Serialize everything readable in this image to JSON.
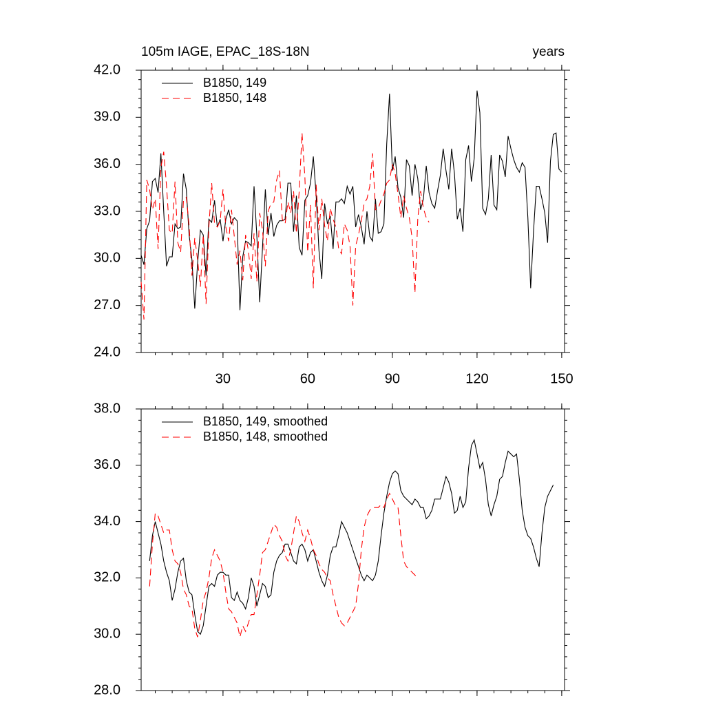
{
  "chart_data": [
    {
      "type": "line",
      "title": "105m IAGE, EPAC_18S-18N",
      "subtitle": "years",
      "xlim": [
        1,
        151
      ],
      "xticks": [
        30,
        60,
        90,
        120,
        150
      ],
      "ylim": [
        24,
        42
      ],
      "yticks": [
        {
          "value": 24,
          "label": "24.0"
        },
        {
          "value": 27,
          "label": "27.0"
        },
        {
          "value": 30,
          "label": "30.0"
        },
        {
          "value": 33,
          "label": "33.0"
        },
        {
          "value": 36,
          "label": "36.0"
        },
        {
          "value": 39,
          "label": "39.0"
        },
        {
          "value": 42,
          "label": "42.0"
        }
      ],
      "legend": "upper left",
      "x": [
        1,
        2,
        3,
        4,
        5,
        6,
        7,
        8,
        9,
        10,
        11,
        12,
        13,
        14,
        15,
        16,
        17,
        18,
        19,
        20,
        21,
        22,
        23,
        24,
        25,
        26,
        27,
        28,
        29,
        30,
        31,
        32,
        33,
        34,
        35,
        36,
        37,
        38,
        39,
        40,
        41,
        42,
        43,
        44,
        45,
        46,
        47,
        48,
        49,
        50,
        51,
        52,
        53,
        54,
        55,
        56,
        57,
        58,
        59,
        60,
        61,
        62,
        63,
        64,
        65,
        66,
        67,
        68,
        69,
        70,
        71,
        72,
        73,
        74,
        75,
        76,
        77,
        78,
        79,
        80,
        81,
        82,
        83,
        84,
        85,
        86,
        87,
        88,
        89,
        90,
        91,
        92,
        93,
        94,
        95,
        96,
        97,
        98,
        99,
        100,
        101,
        102,
        103,
        104,
        105,
        106,
        107,
        108,
        109,
        110,
        111,
        112,
        113,
        114,
        115,
        116,
        117,
        118,
        119,
        120,
        121,
        122,
        123,
        124,
        125,
        126,
        127,
        128,
        129,
        130,
        131,
        132,
        133,
        134,
        135,
        136,
        137,
        138,
        139,
        140,
        141,
        142,
        143,
        144,
        145,
        146,
        147,
        148,
        149,
        150
      ],
      "series": [
        {
          "name": "B1850, 149",
          "color": "#000000",
          "dashed": false,
          "values": [
            30.2,
            29.6,
            31.9,
            32.4,
            34.9,
            35.1,
            34.2,
            36.7,
            33.0,
            29.5,
            30.1,
            30.1,
            32.2,
            31.9,
            32.0,
            35.4,
            34.4,
            31.5,
            29.9,
            26.8,
            29.7,
            31.8,
            31.5,
            28.9,
            32.5,
            32.3,
            33.7,
            32.0,
            32.5,
            31.1,
            32.5,
            33.1,
            32.2,
            32.6,
            32.4,
            26.7,
            30.1,
            31.1,
            31.0,
            30.8,
            34.6,
            31.4,
            27.2,
            30.7,
            34.4,
            31.5,
            32.9,
            31.4,
            32.1,
            32.4,
            32.4,
            32.5,
            34.8,
            34.8,
            31.7,
            34.0,
            30.7,
            30.2,
            33.7,
            34.0,
            34.8,
            36.5,
            34.0,
            30.5,
            28.7,
            33.5,
            32.2,
            32.7,
            30.6,
            33.6,
            33.6,
            33.8,
            33.5,
            34.6,
            34.1,
            34.6,
            32.0,
            32.8,
            32.0,
            30.9,
            33.0,
            31.4,
            31.1,
            33.8,
            31.6,
            31.7,
            32.2,
            37.3,
            40.5,
            35.6,
            36.5,
            34.5,
            33.9,
            32.6,
            36.3,
            35.9,
            34.0,
            36.0,
            35.1,
            33.1,
            33.8,
            35.9,
            34.2,
            33.5,
            33.2,
            34.3,
            35.3,
            37.0,
            35.6,
            34.4,
            37.0,
            35.4,
            32.5,
            33.2,
            31.7,
            36.3,
            37.2,
            34.9,
            36.4,
            40.7,
            39.3,
            33.2,
            32.8,
            33.8,
            36.6,
            33.4,
            33.1,
            36.6,
            36.2,
            35.2,
            37.8,
            37.0,
            36.3,
            35.8,
            35.5,
            36.1,
            35.8,
            32.6,
            28.1,
            31.7,
            34.6,
            34.6,
            33.8,
            32.9,
            31.0,
            36.2,
            37.9,
            38.0,
            35.7,
            35.5
          ]
        },
        {
          "name": "B1850, 148",
          "color": "#ff0000",
          "dashed": true,
          "values": [
            28.5,
            26.1,
            35.0,
            34.4,
            33.1,
            33.8,
            30.6,
            35.8,
            36.8,
            34.6,
            31.8,
            31.6,
            34.9,
            31.0,
            30.4,
            33.7,
            33.9,
            32.1,
            28.9,
            31.3,
            29.9,
            28.2,
            31.5,
            27.1,
            32.0,
            34.8,
            32.2,
            32.0,
            32.4,
            34.4,
            32.0,
            31.1,
            33.1,
            31.4,
            29.6,
            30.5,
            28.6,
            31.5,
            30.5,
            28.7,
            31.6,
            28.5,
            32.9,
            31.8,
            29.5,
            33.0,
            33.5,
            33.6,
            35.0,
            35.6,
            32.5,
            32.2,
            33.6,
            32.9,
            34.3,
            31.6,
            34.3,
            38.0,
            35.2,
            30.4,
            33.4,
            28.1,
            34.7,
            31.8,
            33.8,
            32.1,
            31.1,
            33.2,
            32.5,
            32.0,
            30.6,
            30.3,
            32.2,
            31.8,
            30.8,
            27.0,
            30.8,
            31.5,
            32.4,
            33.5,
            33.8,
            34.6,
            36.7,
            33.1,
            33.2,
            33.7,
            34.1,
            34.8,
            35.0,
            36.0,
            35.4,
            34.1,
            32.6,
            34.0,
            33.2,
            32.6,
            31.3,
            27.8,
            32.5,
            34.3,
            33.2,
            32.6,
            32.3,
            null,
            null,
            null,
            null,
            null,
            null,
            null,
            null,
            null,
            null,
            null,
            null,
            null,
            null,
            null,
            null,
            null,
            null,
            null,
            null,
            null,
            null,
            null,
            null,
            null,
            null,
            null,
            null,
            null,
            null,
            null,
            null,
            null,
            null,
            null,
            null,
            null,
            null,
            null,
            null,
            null,
            null,
            null,
            null,
            null,
            null,
            null
          ]
        }
      ]
    },
    {
      "type": "line",
      "xlim": [
        1,
        151
      ],
      "xticks": [
        30,
        60,
        90,
        120,
        150
      ],
      "ylim": [
        28,
        38
      ],
      "yticks": [
        {
          "value": 28,
          "label": "28.0"
        },
        {
          "value": 30,
          "label": "30.0"
        },
        {
          "value": 32,
          "label": "32.0"
        },
        {
          "value": 34,
          "label": "34.0"
        },
        {
          "value": 36,
          "label": "36.0"
        },
        {
          "value": 38,
          "label": "38.0"
        }
      ],
      "legend": "upper left",
      "x": [
        1,
        2,
        3,
        4,
        5,
        6,
        7,
        8,
        9,
        10,
        11,
        12,
        13,
        14,
        15,
        16,
        17,
        18,
        19,
        20,
        21,
        22,
        23,
        24,
        25,
        26,
        27,
        28,
        29,
        30,
        31,
        32,
        33,
        34,
        35,
        36,
        37,
        38,
        39,
        40,
        41,
        42,
        43,
        44,
        45,
        46,
        47,
        48,
        49,
        50,
        51,
        52,
        53,
        54,
        55,
        56,
        57,
        58,
        59,
        60,
        61,
        62,
        63,
        64,
        65,
        66,
        67,
        68,
        69,
        70,
        71,
        72,
        73,
        74,
        75,
        76,
        77,
        78,
        79,
        80,
        81,
        82,
        83,
        84,
        85,
        86,
        87,
        88,
        89,
        90,
        91,
        92,
        93,
        94,
        95,
        96,
        97,
        98,
        99,
        100,
        101,
        102,
        103,
        104,
        105,
        106,
        107,
        108,
        109,
        110,
        111,
        112,
        113,
        114,
        115,
        116,
        117,
        118,
        119,
        120,
        121,
        122,
        123,
        124,
        125,
        126,
        127,
        128,
        129,
        130,
        131,
        132,
        133,
        134,
        135,
        136,
        137,
        138,
        139,
        140,
        141,
        142,
        143,
        144,
        145,
        146,
        147,
        148,
        149,
        150
      ],
      "series": [
        {
          "name": "B1850, 149, smoothed",
          "color": "#000000",
          "dashed": false,
          "values": [
            null,
            null,
            null,
            32.6,
            33.5,
            34.0,
            33.6,
            33.2,
            32.6,
            32.2,
            31.9,
            31.2,
            31.6,
            32.2,
            32.6,
            32.7,
            31.9,
            31.5,
            31.4,
            30.7,
            30.1,
            30.0,
            30.3,
            31.0,
            31.7,
            31.8,
            31.7,
            32.1,
            32.2,
            32.2,
            32.1,
            32.1,
            31.3,
            31.2,
            31.5,
            31.2,
            31.1,
            30.9,
            31.3,
            32.0,
            31.7,
            31.0,
            31.4,
            31.8,
            31.7,
            31.3,
            31.4,
            32.2,
            32.6,
            32.8,
            32.9,
            33.2,
            33.2,
            32.9,
            32.6,
            32.5,
            33.1,
            33.2,
            33.0,
            32.6,
            32.9,
            33.0,
            32.6,
            32.2,
            31.9,
            31.7,
            32.1,
            32.8,
            33.1,
            33.1,
            33.5,
            34.0,
            33.8,
            33.6,
            33.3,
            33.0,
            32.7,
            32.4,
            32.1,
            31.9,
            32.1,
            32.0,
            31.9,
            32.1,
            32.6,
            33.5,
            34.3,
            34.9,
            35.4,
            35.7,
            35.8,
            35.7,
            35.1,
            34.9,
            34.8,
            34.7,
            34.6,
            34.8,
            34.7,
            34.5,
            34.5,
            34.1,
            34.2,
            34.4,
            34.8,
            34.8,
            34.8,
            35.2,
            35.6,
            35.4,
            35.0,
            34.3,
            34.4,
            34.9,
            34.5,
            34.7,
            35.9,
            36.7,
            36.9,
            36.4,
            35.9,
            36.1,
            35.5,
            34.6,
            34.2,
            34.6,
            34.9,
            35.5,
            35.6,
            36.1,
            36.5,
            36.4,
            36.3,
            36.4,
            35.5,
            34.4,
            33.8,
            33.5,
            33.4,
            33.1,
            32.7,
            32.4,
            33.6,
            34.5,
            34.9,
            35.1,
            35.3,
            null,
            null,
            null
          ]
        },
        {
          "name": "B1850, 148, smoothed",
          "color": "#ff0000",
          "dashed": true,
          "values": [
            null,
            null,
            null,
            31.7,
            33.2,
            34.3,
            34.2,
            33.9,
            33.6,
            33.7,
            33.7,
            33.0,
            32.6,
            32.5,
            32.2,
            31.6,
            31.4,
            31.0,
            30.9,
            30.2,
            29.9,
            30.5,
            31.2,
            31.5,
            32.0,
            32.7,
            33.0,
            32.8,
            32.6,
            32.2,
            31.5,
            30.9,
            30.8,
            30.6,
            30.4,
            29.9,
            30.3,
            30.1,
            30.4,
            30.7,
            30.7,
            31.4,
            32.1,
            32.9,
            33.0,
            33.3,
            33.6,
            33.9,
            33.8,
            33.5,
            33.3,
            32.8,
            32.6,
            33.0,
            33.6,
            34.2,
            34.0,
            33.6,
            33.3,
            33.7,
            33.4,
            33.0,
            32.8,
            32.5,
            32.3,
            32.2,
            32.0,
            31.9,
            31.4,
            31.0,
            30.6,
            30.4,
            30.3,
            30.4,
            30.6,
            30.8,
            31.0,
            31.8,
            33.0,
            33.8,
            34.2,
            34.4,
            34.5,
            34.5,
            34.5,
            34.6,
            34.5,
            34.8,
            35.0,
            34.8,
            34.6,
            34.5,
            33.5,
            32.6,
            32.4,
            32.3,
            32.2,
            32.1,
            32.0,
            null,
            null,
            null,
            null,
            null,
            null,
            null,
            null,
            null,
            null,
            null,
            null,
            null,
            null,
            null,
            null,
            null,
            null,
            null,
            null,
            null,
            null,
            null,
            null,
            null,
            null,
            null,
            null,
            null,
            null,
            null,
            null,
            null,
            null,
            null,
            null,
            null,
            null,
            null,
            null,
            null,
            null,
            null,
            null,
            null,
            null,
            null,
            null,
            null,
            null,
            null
          ]
        }
      ]
    }
  ]
}
